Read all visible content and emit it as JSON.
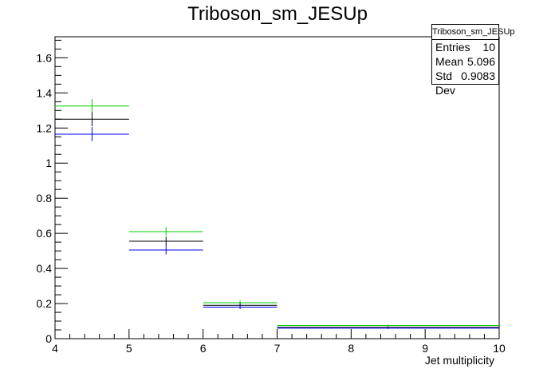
{
  "chart_data": {
    "type": "bar",
    "title": "Triboson_sm_JESUp",
    "xlabel": "Jet multiplicity",
    "ylabel": "",
    "xlim": [
      4,
      10
    ],
    "ylim": [
      0,
      1.72
    ],
    "x_ticks": [
      "4",
      "5",
      "6",
      "7",
      "8",
      "9",
      "10"
    ],
    "y_ticks": [
      "0",
      "0.2",
      "0.4",
      "0.6",
      "0.8",
      "1",
      "1.2",
      "1.4",
      "1.6"
    ],
    "stats": {
      "title": "Triboson_sm_JESUp",
      "rows": [
        {
          "label": "Entries",
          "value": "10"
        },
        {
          "label": "Mean",
          "value": "5.096"
        },
        {
          "label": "Std Dev",
          "value": "0.9083"
        }
      ]
    },
    "series": [
      {
        "color": "#00cc00",
        "bins": [
          {
            "x0": 4,
            "x1": 5,
            "y": 1.325,
            "err": 0.04
          },
          {
            "x0": 5,
            "x1": 6,
            "y": 0.61,
            "err": 0.025
          },
          {
            "x0": 6,
            "x1": 7,
            "y": 0.205,
            "err": 0.012
          },
          {
            "x0": 7,
            "x1": 10,
            "y": 0.075,
            "err": 0.005
          }
        ]
      },
      {
        "color": "#000000",
        "bins": [
          {
            "x0": 4,
            "x1": 5,
            "y": 1.25,
            "err": 0.04
          },
          {
            "x0": 5,
            "x1": 6,
            "y": 0.555,
            "err": 0.025
          },
          {
            "x0": 6,
            "x1": 7,
            "y": 0.19,
            "err": 0.012
          },
          {
            "x0": 7,
            "x1": 10,
            "y": 0.065,
            "err": 0.005
          }
        ]
      },
      {
        "color": "#0000ee",
        "bins": [
          {
            "x0": 4,
            "x1": 5,
            "y": 1.165,
            "err": 0.04
          },
          {
            "x0": 5,
            "x1": 6,
            "y": 0.505,
            "err": 0.025
          },
          {
            "x0": 6,
            "x1": 7,
            "y": 0.18,
            "err": 0.012
          },
          {
            "x0": 7,
            "x1": 10,
            "y": 0.06,
            "err": 0.005
          }
        ]
      }
    ]
  }
}
